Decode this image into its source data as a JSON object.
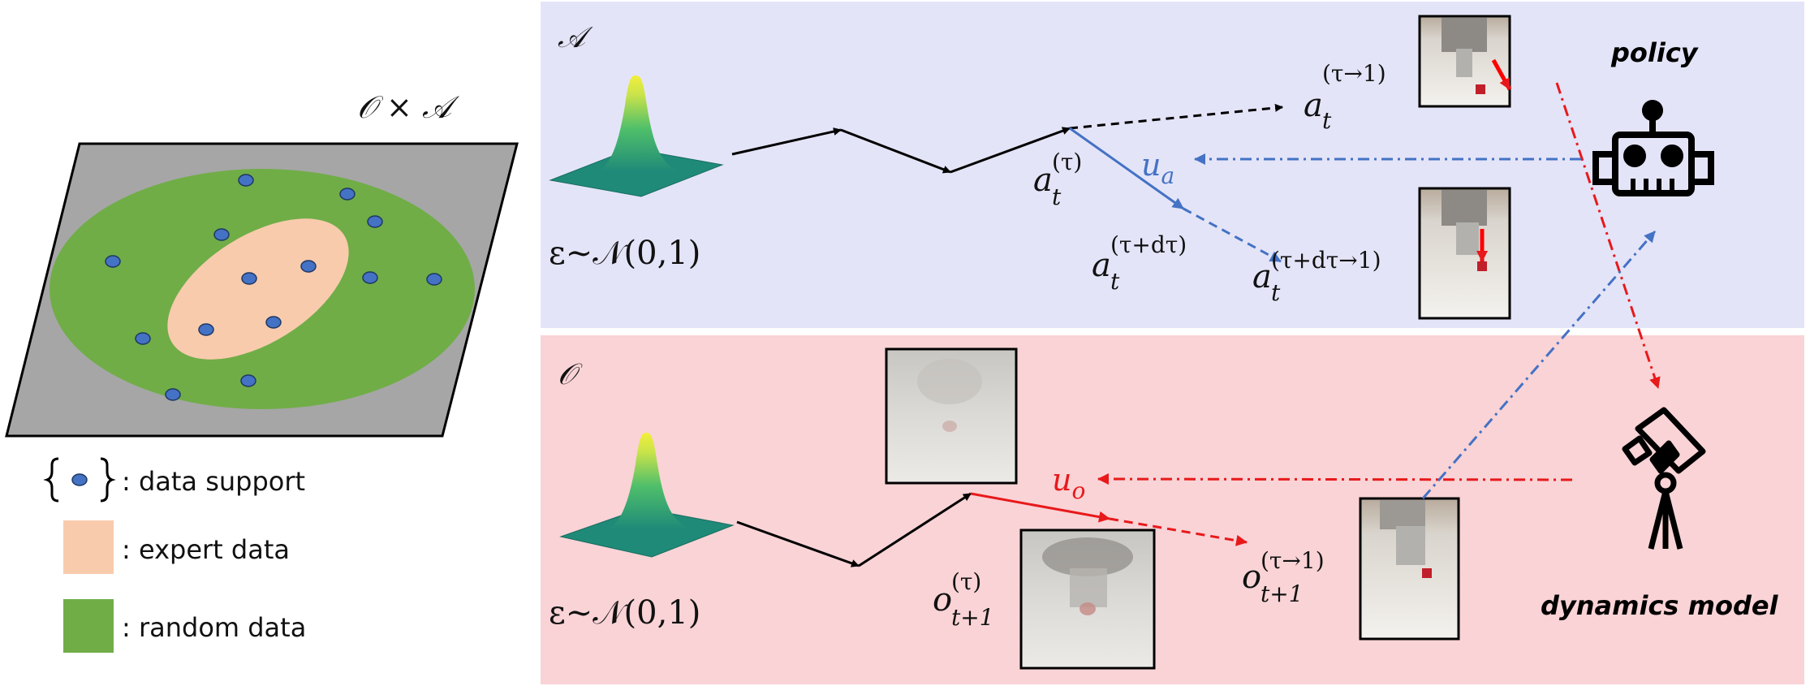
{
  "space_label": "𝒪 × 𝒜",
  "legend": {
    "support_label": ": data support",
    "expert_label": ": expert data",
    "random_label": ": random data"
  },
  "action_panel": {
    "label": "𝒜",
    "noise_eps": "ε∼𝒩(0,1)",
    "a_tau_base": "a",
    "a_tau_sub": "t",
    "a_tau_sup": "(τ)",
    "a_next_base": "a",
    "a_next_sub": "t",
    "a_next_sup": "(τ→1)",
    "a_dtau_base": "a",
    "a_dtau_sub": "t",
    "a_dtau_sup": "(τ+dτ)",
    "a_dtau_next_base": "a",
    "a_dtau_next_sub": "t",
    "a_dtau_next_sup": "(τ+dτ→1)",
    "u_base": "u",
    "u_sub": "a",
    "colors": {
      "background": "#e4e4f8",
      "velocity": "#4472c4"
    }
  },
  "obs_panel": {
    "label": "𝒪",
    "noise_eps": "ε∼𝒩(0,1)",
    "o_tau_base": "o",
    "o_tau_sub": "t+1",
    "o_tau_sup": "(τ)",
    "o_next_base": "o",
    "o_next_sub": "t+1",
    "o_next_sup": "(τ→1)",
    "u_base": "u",
    "u_sub": "o",
    "colors": {
      "background": "#f9d3d6",
      "velocity": "#e8191b"
    }
  },
  "policy_label": "policy",
  "dynamics_label": "dynamics model",
  "colors": {
    "grey_plane": "#a6a6a6",
    "random_data": "#70ad47",
    "expert_data": "#f8cbad",
    "support_point": "#4472c4"
  }
}
